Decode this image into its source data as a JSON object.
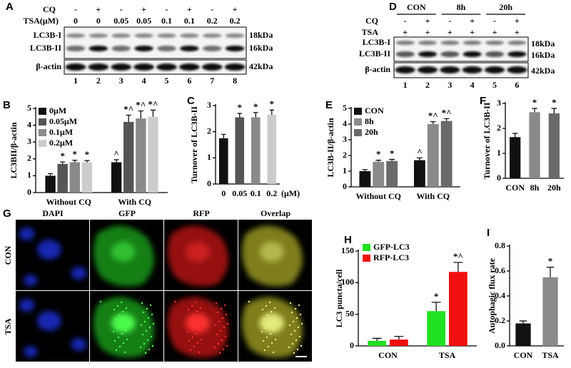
{
  "blots": {
    "A": {
      "panel": "A",
      "cq_label": "CQ",
      "tsa_label": "TSA(μM)",
      "cq": [
        "-",
        "+",
        "-",
        "+",
        "-",
        "+",
        "-",
        "+"
      ],
      "tsa": [
        "0",
        "0",
        "0.05",
        "0.05",
        "0.1",
        "0.1",
        "0.2",
        "0.2"
      ],
      "bands": [
        "LC3B-I",
        "LC3B-II",
        "β-actin"
      ],
      "sizes": [
        "18kDa",
        "16kDa",
        "42kDa"
      ],
      "lanes": [
        1,
        2,
        3,
        4,
        5,
        6,
        7,
        8
      ]
    },
    "D": {
      "panel": "D",
      "groups": [
        "CON",
        "8h",
        "20h"
      ],
      "cq_label": "CQ",
      "tsa_label": "TSA",
      "cq": [
        "-",
        "+",
        "-",
        "+",
        "-",
        "+"
      ],
      "tsa": [
        "+",
        "+",
        "+",
        "+",
        "+",
        "+"
      ],
      "bands": [
        "LC3B-I",
        "LC3B-II",
        "β-actin"
      ],
      "sizes": [
        "18kDa",
        "16kDa",
        "42kDa"
      ],
      "lanes": [
        1,
        2,
        3,
        4,
        5,
        6
      ]
    }
  },
  "microscopy": {
    "panel": "G",
    "columns": [
      "DAPI",
      "GFP",
      "RFP",
      "Overlap"
    ],
    "rows": [
      "CON",
      "TSA"
    ]
  },
  "chart_data": [
    {
      "type": "bar",
      "panel": "B",
      "ylabel": "LC3BII/β-actin",
      "categories": [
        "Without  CQ",
        "With  CQ"
      ],
      "ylim": [
        0,
        5
      ],
      "yticks": [
        0,
        1,
        2,
        3,
        4,
        5
      ],
      "series": [
        {
          "name": "0μM",
          "color": "#111111",
          "values": [
            1.0,
            1.8
          ],
          "errors": [
            0.12,
            0.15
          ],
          "significance": [
            null,
            "^"
          ]
        },
        {
          "name": "0.05μM",
          "color": "#555555",
          "values": [
            1.7,
            4.2
          ],
          "errors": [
            0.12,
            0.4
          ],
          "significance": [
            "*",
            "*^"
          ]
        },
        {
          "name": "0.1μM",
          "color": "#8a8a8a",
          "values": [
            1.8,
            4.4
          ],
          "errors": [
            0.12,
            0.45
          ],
          "significance": [
            "*",
            "*^"
          ]
        },
        {
          "name": "0.2μM",
          "color": "#cccccc",
          "values": [
            1.8,
            4.5
          ],
          "errors": [
            0.1,
            0.4
          ],
          "significance": [
            "*",
            "*^"
          ]
        }
      ]
    },
    {
      "type": "bar",
      "panel": "C",
      "ylabel": "Turnover of LC3B-II",
      "xlabel": "(μM)",
      "categories": [
        "0",
        "0.05",
        "0.1",
        "0.2"
      ],
      "ylim": [
        0,
        3
      ],
      "yticks": [
        0,
        1,
        2,
        3
      ],
      "values": [
        1.75,
        2.55,
        2.55,
        2.65
      ],
      "errors": [
        0.15,
        0.15,
        0.18,
        0.18
      ],
      "colors": [
        "#111111",
        "#555555",
        "#8a8a8a",
        "#cccccc"
      ],
      "significance": [
        null,
        "*",
        "*",
        "*"
      ]
    },
    {
      "type": "bar",
      "panel": "E",
      "ylabel": "LC3B-II/β-actin",
      "categories": [
        "Without  CQ",
        "With  CQ"
      ],
      "ylim": [
        0,
        5
      ],
      "yticks": [
        0,
        1,
        2,
        3,
        4,
        5
      ],
      "series": [
        {
          "name": "CON",
          "color": "#111111",
          "values": [
            1.0,
            1.7
          ],
          "errors": [
            0.1,
            0.15
          ],
          "significance": [
            null,
            "^"
          ]
        },
        {
          "name": "8h",
          "color": "#8a8a8a",
          "values": [
            1.6,
            4.0
          ],
          "errors": [
            0.1,
            0.15
          ],
          "significance": [
            "*",
            "*^"
          ]
        },
        {
          "name": "20h",
          "color": "#6a6a6a",
          "values": [
            1.65,
            4.2
          ],
          "errors": [
            0.1,
            0.15
          ],
          "significance": [
            "*",
            "*^"
          ]
        }
      ]
    },
    {
      "type": "bar",
      "panel": "F",
      "ylabel": "Turnover of LC3B-II",
      "categories": [
        "CON",
        "8h",
        "20h"
      ],
      "ylim": [
        0,
        3
      ],
      "yticks": [
        0,
        1,
        2,
        3
      ],
      "values": [
        1.65,
        2.65,
        2.6
      ],
      "errors": [
        0.15,
        0.15,
        0.2
      ],
      "colors": [
        "#111111",
        "#8a8a8a",
        "#6a6a6a"
      ],
      "significance": [
        null,
        "*",
        "*"
      ]
    },
    {
      "type": "bar",
      "panel": "H",
      "ylabel": "LC3 puncta/cell",
      "categories": [
        "CON",
        "TSA"
      ],
      "ylim": [
        0,
        150
      ],
      "yticks": [
        0,
        50,
        100,
        150
      ],
      "series": [
        {
          "name": "GFP-LC3",
          "color": "#22e022",
          "values": [
            8,
            55
          ],
          "errors": [
            4,
            14
          ],
          "significance": [
            null,
            "*"
          ]
        },
        {
          "name": "RFP-LC3",
          "color": "#f01010",
          "values": [
            10,
            117
          ],
          "errors": [
            5,
            15
          ],
          "significance": [
            null,
            "*^"
          ]
        }
      ]
    },
    {
      "type": "bar",
      "panel": "I",
      "ylabel": "Autophagic flux rate",
      "categories": [
        "CON",
        "TSA"
      ],
      "ylim": [
        0,
        0.8
      ],
      "yticks": [
        {
          "value": 0,
          "label": "0.0"
        },
        0.2,
        0.4,
        0.6,
        0.8
      ],
      "values": [
        0.18,
        0.55
      ],
      "errors": [
        0.02,
        0.08
      ],
      "colors": [
        "#111111",
        "#8a8a8a"
      ],
      "significance": [
        null,
        "*"
      ]
    }
  ]
}
